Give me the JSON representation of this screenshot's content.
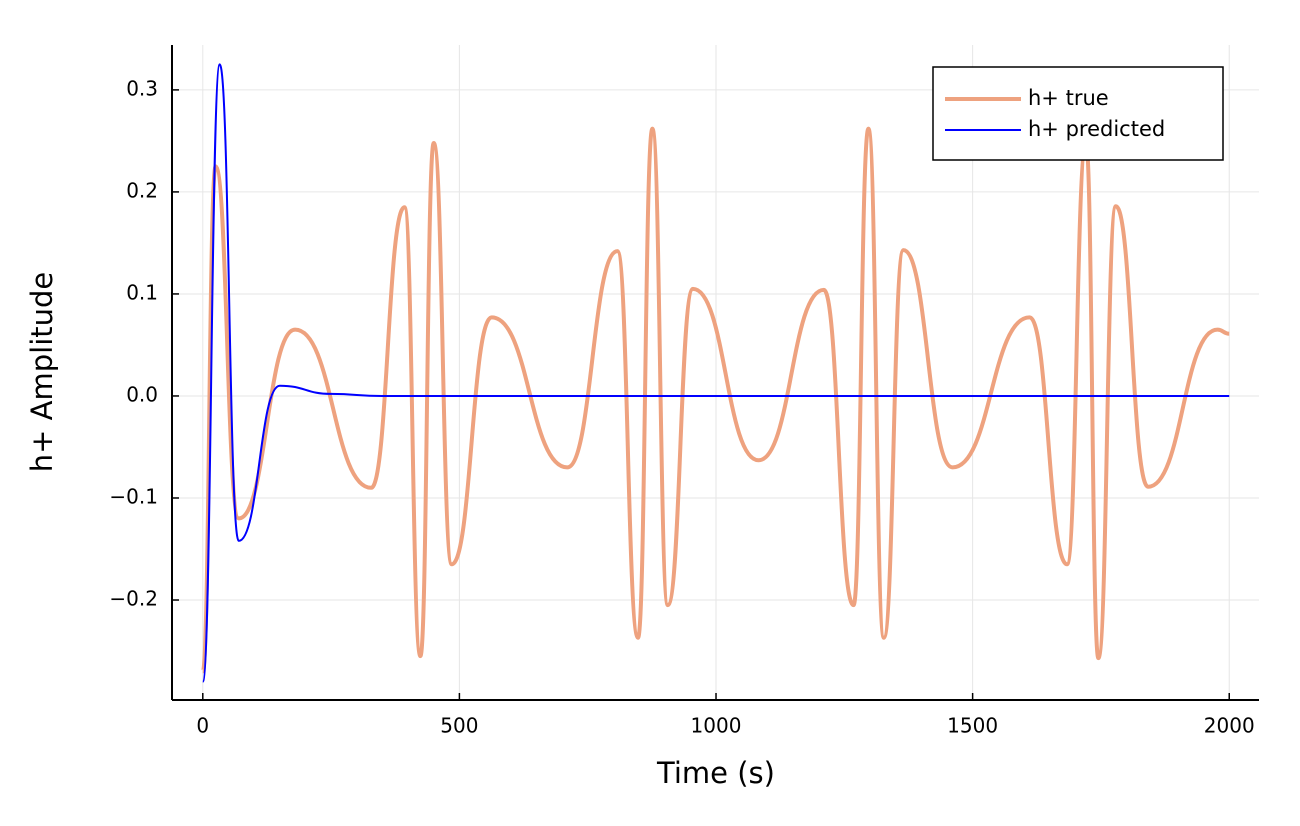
{
  "chart_data": {
    "type": "line",
    "xlabel": "Time (s)",
    "ylabel": "h+ Amplitude",
    "xlim": [
      -60,
      2058
    ],
    "ylim": [
      -0.298,
      0.344
    ],
    "xticks": [
      0,
      500,
      1000,
      1500,
      2000
    ],
    "yticks": [
      {
        "value": -0.2,
        "label": "−0.2"
      },
      {
        "value": -0.1,
        "label": "−0.1"
      },
      {
        "value": 0,
        "label": "0.0"
      },
      0.1,
      0.2,
      0.3
    ],
    "grid": true,
    "legend": "upper right",
    "series": [
      {
        "name": "h+ true",
        "color": "#eea27f",
        "x": [
          0,
          25,
          70,
          180,
          328,
          393,
          424,
          450,
          485,
          563,
          710,
          808,
          848,
          876,
          906,
          955,
          1083,
          1210,
          1268,
          1297,
          1327,
          1365,
          1461,
          1611,
          1684,
          1721,
          1745,
          1779,
          1842,
          1977,
          2000
        ],
        "values": [
          -0.27,
          0.225,
          -0.12,
          0.065,
          -0.09,
          0.185,
          -0.255,
          0.248,
          -0.165,
          0.077,
          -0.07,
          0.142,
          -0.237,
          0.262,
          -0.205,
          0.105,
          -0.063,
          0.104,
          -0.205,
          0.262,
          -0.237,
          0.143,
          -0.07,
          0.077,
          -0.165,
          0.248,
          -0.257,
          0.186,
          -0.089,
          0.065,
          0.061
        ]
      },
      {
        "name": "h+ predicted",
        "color": "#0000ff",
        "x": [
          0,
          33,
          70,
          150,
          250,
          350,
          2000
        ],
        "values": [
          -0.28,
          0.325,
          -0.142,
          0.01,
          0.002,
          0,
          0
        ]
      }
    ]
  }
}
